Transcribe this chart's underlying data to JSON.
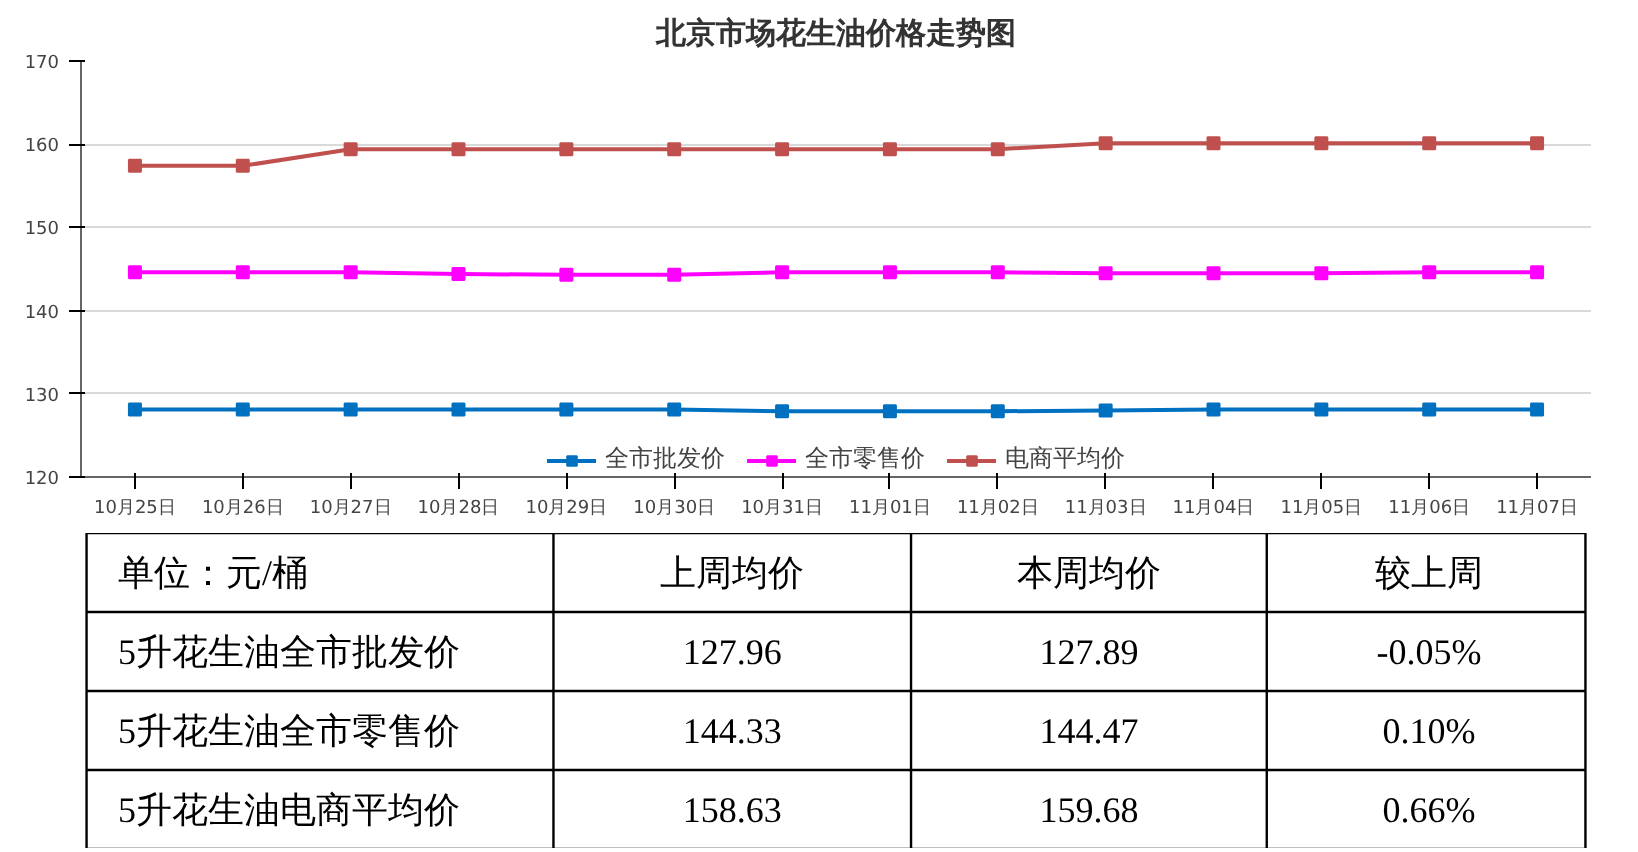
{
  "chart_data": [
    {
      "type": "line",
      "title": "北京市场花生油价格走势图",
      "categories": [
        "10月25日",
        "10月26日",
        "10月27日",
        "10月28日",
        "10月29日",
        "10月30日",
        "10月31日",
        "11月01日",
        "11月02日",
        "11月03日",
        "11月04日",
        "11月05日",
        "11月06日",
        "11月07日"
      ],
      "series": [
        {
          "name": "全市批发价",
          "color": "#0070c0",
          "values": [
            128.1,
            128.1,
            128.1,
            128.1,
            128.1,
            128.1,
            127.9,
            127.9,
            127.9,
            128.0,
            128.1,
            128.1,
            128.1,
            128.1
          ]
        },
        {
          "name": "全市零售价",
          "color": "#ff00ff",
          "values": [
            144.6,
            144.6,
            144.6,
            144.4,
            144.3,
            144.3,
            144.6,
            144.6,
            144.6,
            144.5,
            144.5,
            144.5,
            144.6,
            144.6
          ]
        },
        {
          "name": "电商平均价",
          "color": "#c0504d",
          "values": [
            157.4,
            157.4,
            159.4,
            159.4,
            159.4,
            159.4,
            159.4,
            159.4,
            159.4,
            160.1,
            160.1,
            160.1,
            160.1,
            160.1
          ]
        }
      ],
      "ylim": [
        120,
        170
      ],
      "yticks": [
        120,
        130,
        140,
        150,
        160,
        170
      ],
      "grid": "y",
      "legend": "bottom",
      "marker": "square",
      "line_style": "solid"
    },
    {
      "type": "other",
      "annotations": [
        "单位：元/桶",
        "上周均价",
        "本周均价",
        "较上周",
        "5升花生油全市批发价",
        "127.96",
        "127.89",
        "-0.05%",
        "5升花生油全市零售价",
        "144.33",
        "144.47",
        "0.10%",
        "5升花生油电商平均价",
        "158.63",
        "159.68",
        "0.66%"
      ]
    }
  ]
}
